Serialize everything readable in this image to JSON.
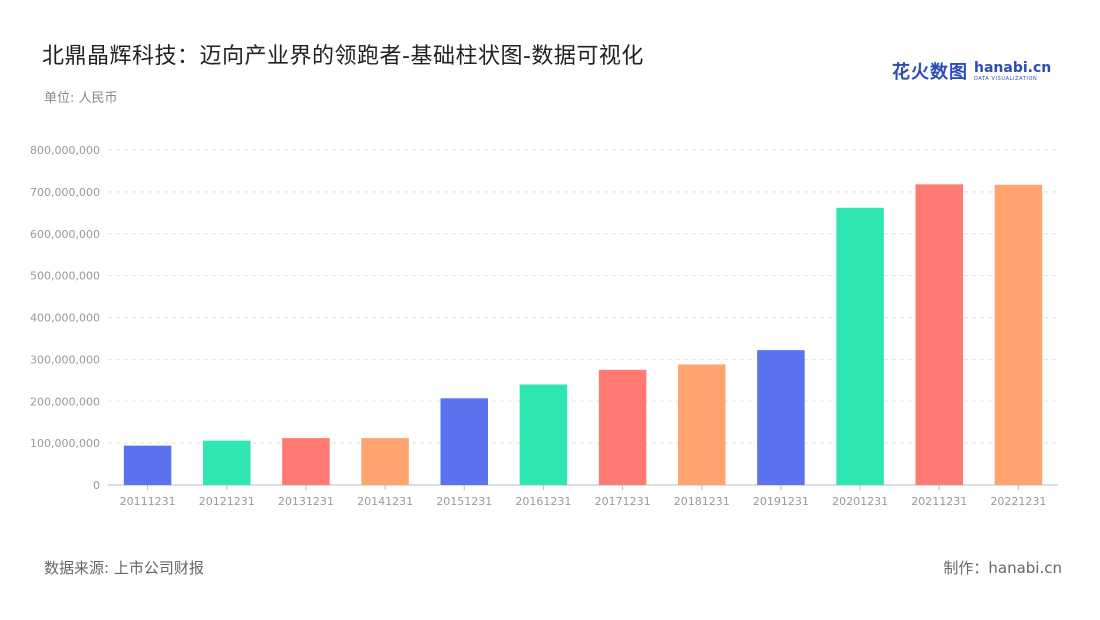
{
  "header": {
    "title": "北鼎晶辉科技：迈向产业界的领跑者-基础柱状图-数据可视化",
    "unit": "单位: 人民币"
  },
  "logo": {
    "cn": "花火数图",
    "en": "hanabi.cn",
    "sub": "DATA VISUALIZATION"
  },
  "footer": {
    "source": "数据来源: 上市公司财报",
    "maker": "制作：hanabi.cn"
  },
  "chart_data": {
    "type": "bar",
    "categories": [
      "20111231",
      "20121231",
      "20131231",
      "20141231",
      "20151231",
      "20161231",
      "20171231",
      "20181231",
      "20191231",
      "20201231",
      "20211231",
      "20221231"
    ],
    "values": [
      94000000,
      106000000,
      112000000,
      112000000,
      207000000,
      240000000,
      275000000,
      288000000,
      322000000,
      662000000,
      718000000,
      717000000
    ],
    "colors": [
      "#5b72ee",
      "#2de6b1",
      "#ff7a72",
      "#ffa46e",
      "#5b72ee",
      "#2de6b1",
      "#ff7a72",
      "#ffa46e",
      "#5b72ee",
      "#2de6b1",
      "#ff7a72",
      "#ffa46e"
    ],
    "yticks": [
      "0",
      "100,000,000",
      "200,000,000",
      "300,000,000",
      "400,000,000",
      "500,000,000",
      "600,000,000",
      "700,000,000",
      "800,000,000"
    ],
    "ylim": [
      0,
      800000000
    ],
    "grid": true,
    "xlabel": "",
    "ylabel": ""
  }
}
